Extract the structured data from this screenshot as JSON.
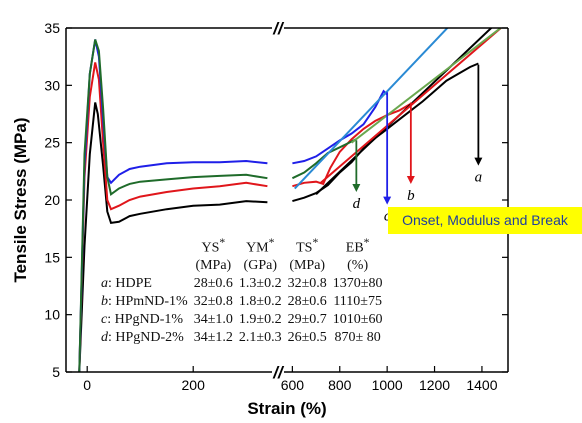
{
  "chart_data": {
    "type": "line",
    "xlabel": "Strain (%)",
    "ylabel": "Tensile Stress (MPa)",
    "axis_break": "//",
    "ylim": [
      5,
      35
    ],
    "y_ticks": [
      5,
      10,
      15,
      20,
      25,
      30,
      35
    ],
    "x_segment_1": {
      "xlim": [
        -40,
        360
      ],
      "ticks": [
        0,
        200
      ]
    },
    "x_segment_2": {
      "xlim": [
        590,
        1510
      ],
      "ticks": [
        600,
        800,
        1000,
        1200,
        1400
      ]
    },
    "series": [
      {
        "name": "a",
        "color": "#000000",
        "segment1": [
          [
            -15,
            5
          ],
          [
            -5,
            16
          ],
          [
            5,
            24
          ],
          [
            15,
            28.5
          ],
          [
            20,
            27.5
          ],
          [
            30,
            23
          ],
          [
            38,
            19
          ],
          [
            45,
            18
          ],
          [
            60,
            18.1
          ],
          [
            80,
            18.6
          ],
          [
            100,
            18.8
          ],
          [
            150,
            19.2
          ],
          [
            200,
            19.5
          ],
          [
            250,
            19.6
          ],
          [
            300,
            19.9
          ],
          [
            340,
            19.8
          ]
        ],
        "segment2": [
          [
            600,
            19.9
          ],
          [
            650,
            20.2
          ],
          [
            700,
            20.6
          ],
          [
            750,
            21.3
          ],
          [
            800,
            22.4
          ],
          [
            850,
            23.3
          ],
          [
            900,
            24.5
          ],
          [
            950,
            25.4
          ],
          [
            1000,
            26.2
          ],
          [
            1050,
            27.0
          ],
          [
            1100,
            27.8
          ],
          [
            1150,
            28.6
          ],
          [
            1200,
            29.5
          ],
          [
            1250,
            30.4
          ],
          [
            1300,
            31.0
          ],
          [
            1350,
            31.6
          ],
          [
            1385,
            31.9
          ]
        ]
      },
      {
        "name": "b",
        "color": "#e0161b",
        "segment1": [
          [
            -15,
            5
          ],
          [
            -5,
            22
          ],
          [
            5,
            29
          ],
          [
            15,
            32
          ],
          [
            22,
            30.5
          ],
          [
            30,
            25
          ],
          [
            38,
            20
          ],
          [
            45,
            19.2
          ],
          [
            60,
            19.5
          ],
          [
            80,
            20
          ],
          [
            100,
            20.3
          ],
          [
            150,
            20.7
          ],
          [
            200,
            21
          ],
          [
            250,
            21.2
          ],
          [
            300,
            21.5
          ],
          [
            340,
            21.2
          ]
        ],
        "segment2": [
          [
            600,
            21.2
          ],
          [
            650,
            21.5
          ],
          [
            700,
            21.6
          ],
          [
            730,
            21.4
          ],
          [
            760,
            22.8
          ],
          [
            800,
            24.2
          ],
          [
            850,
            25.3
          ],
          [
            900,
            26.2
          ],
          [
            950,
            26.9
          ],
          [
            1000,
            27.4
          ],
          [
            1050,
            27.8
          ],
          [
            1100,
            28.4
          ]
        ]
      },
      {
        "name": "c",
        "color": "#1f1fe8",
        "segment1": [
          [
            -15,
            5
          ],
          [
            -5,
            23
          ],
          [
            5,
            31
          ],
          [
            15,
            34
          ],
          [
            22,
            32.5
          ],
          [
            30,
            27
          ],
          [
            38,
            22
          ],
          [
            45,
            21.5
          ],
          [
            60,
            22.2
          ],
          [
            80,
            22.7
          ],
          [
            100,
            22.9
          ],
          [
            150,
            23.2
          ],
          [
            200,
            23.3
          ],
          [
            250,
            23.3
          ],
          [
            300,
            23.4
          ],
          [
            340,
            23.2
          ]
        ],
        "segment2": [
          [
            600,
            23.2
          ],
          [
            650,
            23.4
          ],
          [
            700,
            23.8
          ],
          [
            750,
            24.5
          ],
          [
            800,
            25.2
          ],
          [
            850,
            25.8
          ],
          [
            900,
            26.6
          ],
          [
            950,
            28.1
          ],
          [
            985,
            29.5
          ],
          [
            1000,
            29.2
          ]
        ]
      },
      {
        "name": "d",
        "color": "#1f6b2a",
        "segment1": [
          [
            -15,
            5
          ],
          [
            -5,
            24
          ],
          [
            5,
            31
          ],
          [
            15,
            34
          ],
          [
            22,
            33
          ],
          [
            30,
            28
          ],
          [
            38,
            22
          ],
          [
            45,
            20.5
          ],
          [
            60,
            21
          ],
          [
            80,
            21.4
          ],
          [
            100,
            21.6
          ],
          [
            150,
            21.8
          ],
          [
            200,
            22
          ],
          [
            250,
            22.1
          ],
          [
            300,
            22.2
          ],
          [
            340,
            21.9
          ]
        ],
        "segment2": [
          [
            600,
            21.9
          ],
          [
            650,
            22.4
          ],
          [
            700,
            23.2
          ],
          [
            750,
            24.1
          ],
          [
            800,
            24.6
          ],
          [
            850,
            25.1
          ],
          [
            870,
            25.3
          ]
        ]
      }
    ],
    "modulus_lines": [
      {
        "series": "a",
        "color": "#000000",
        "from": [
          700,
          20.5
        ],
        "to": [
          1490,
          36
        ]
      },
      {
        "series": "b",
        "color": "#e0161b",
        "from": [
          720,
          21.5
        ],
        "to": [
          1480,
          35
        ]
      },
      {
        "series": "c",
        "color": "#2a8ad4",
        "from": [
          610,
          21
        ],
        "to": [
          1300,
          36
        ]
      },
      {
        "series": "d",
        "color": "#6aa84f",
        "from": [
          850,
          25
        ],
        "to": [
          1510,
          35.5
        ]
      }
    ],
    "break_arrows": [
      {
        "series": "a",
        "label": "a",
        "color": "#000000",
        "x": 1385,
        "y_from": 31.8,
        "y_to": 23
      },
      {
        "series": "b",
        "label": "b",
        "color": "#e0161b",
        "x": 1100,
        "y_from": 28.5,
        "y_to": 21.4
      },
      {
        "series": "c",
        "label": "c",
        "color": "#1f1fe8",
        "x": 1000,
        "y_from": 29.4,
        "y_to": 19.6
      },
      {
        "series": "d",
        "label": "d",
        "color": "#1f6b2a",
        "x": 870,
        "y_from": 25.2,
        "y_to": 20.7
      }
    ],
    "annotation": "Onset, Modulus and Break",
    "table": {
      "headers": [
        {
          "name": "YS",
          "unit": "(MPa)"
        },
        {
          "name": "YM",
          "unit": "(GPa)"
        },
        {
          "name": "TS",
          "unit": "(MPa)"
        },
        {
          "name": "EB",
          "unit": "(%)"
        }
      ],
      "header_mark": "*",
      "rows": [
        {
          "key": "a",
          "label": ": HDPE",
          "values": [
            "28±0.6",
            "1.3±0.2",
            "32±0.8",
            "1370±80"
          ]
        },
        {
          "key": "b",
          "label": ": HPmND-1%",
          "values": [
            "32±0.8",
            "1.8±0.2",
            "28±0.6",
            "1110±75"
          ]
        },
        {
          "key": "c",
          "label": ": HPgND-1%",
          "values": [
            "34±1.0",
            "1.9±0.2",
            "29±0.7",
            "1010±60"
          ]
        },
        {
          "key": "d",
          "label": ": HPgND-2%",
          "values": [
            "34±1.2",
            "2.1±0.3",
            "26±0.5",
            "870± 80"
          ]
        }
      ]
    }
  }
}
